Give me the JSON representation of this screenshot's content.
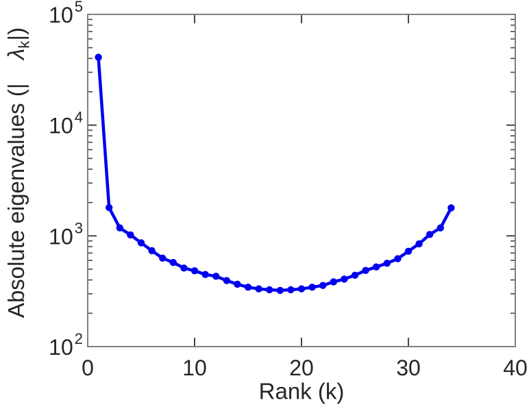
{
  "window": {
    "background": "#ffffff"
  },
  "chart_data": {
    "type": "line",
    "title": "",
    "xlabel": "Rank (k)",
    "ylabel": "Absolute eigenvalues (| λ_k |)",
    "ylabel_parts": {
      "prefix": "Absolute eigenvalues (|",
      "symbol": "λ",
      "subscript": "k",
      "suffix": "|)"
    },
    "xscale": "linear",
    "yscale": "log",
    "xlim": [
      0,
      40
    ],
    "ylim": [
      100,
      100000
    ],
    "x_ticks": [
      0,
      10,
      20,
      30,
      40
    ],
    "y_tick_base": "10",
    "y_tick_exponents": [
      2,
      3,
      4,
      5
    ],
    "grid": false,
    "legend": null,
    "styles": {
      "line_color": "#0000ee",
      "marker_color": "#0000ee",
      "box_color": "#7f7f7f",
      "tick_color": "#454545",
      "text_color": "#262626"
    },
    "series": [
      {
        "name": "absolute-eigenvalues",
        "marker": "filled-circle",
        "x": [
          1,
          2,
          3,
          4,
          5,
          6,
          7,
          8,
          9,
          10,
          11,
          12,
          13,
          14,
          15,
          16,
          17,
          18,
          19,
          20,
          21,
          22,
          23,
          24,
          25,
          26,
          27,
          28,
          29,
          30,
          31,
          32,
          33,
          34
        ],
        "y": [
          41000,
          1800,
          1180,
          1020,
          865,
          735,
          630,
          575,
          512,
          484,
          448,
          432,
          395,
          366,
          344,
          332,
          326,
          322,
          326,
          332,
          344,
          357,
          385,
          407,
          441,
          487,
          524,
          566,
          622,
          726,
          848,
          1030,
          1180,
          1790
        ]
      }
    ]
  }
}
